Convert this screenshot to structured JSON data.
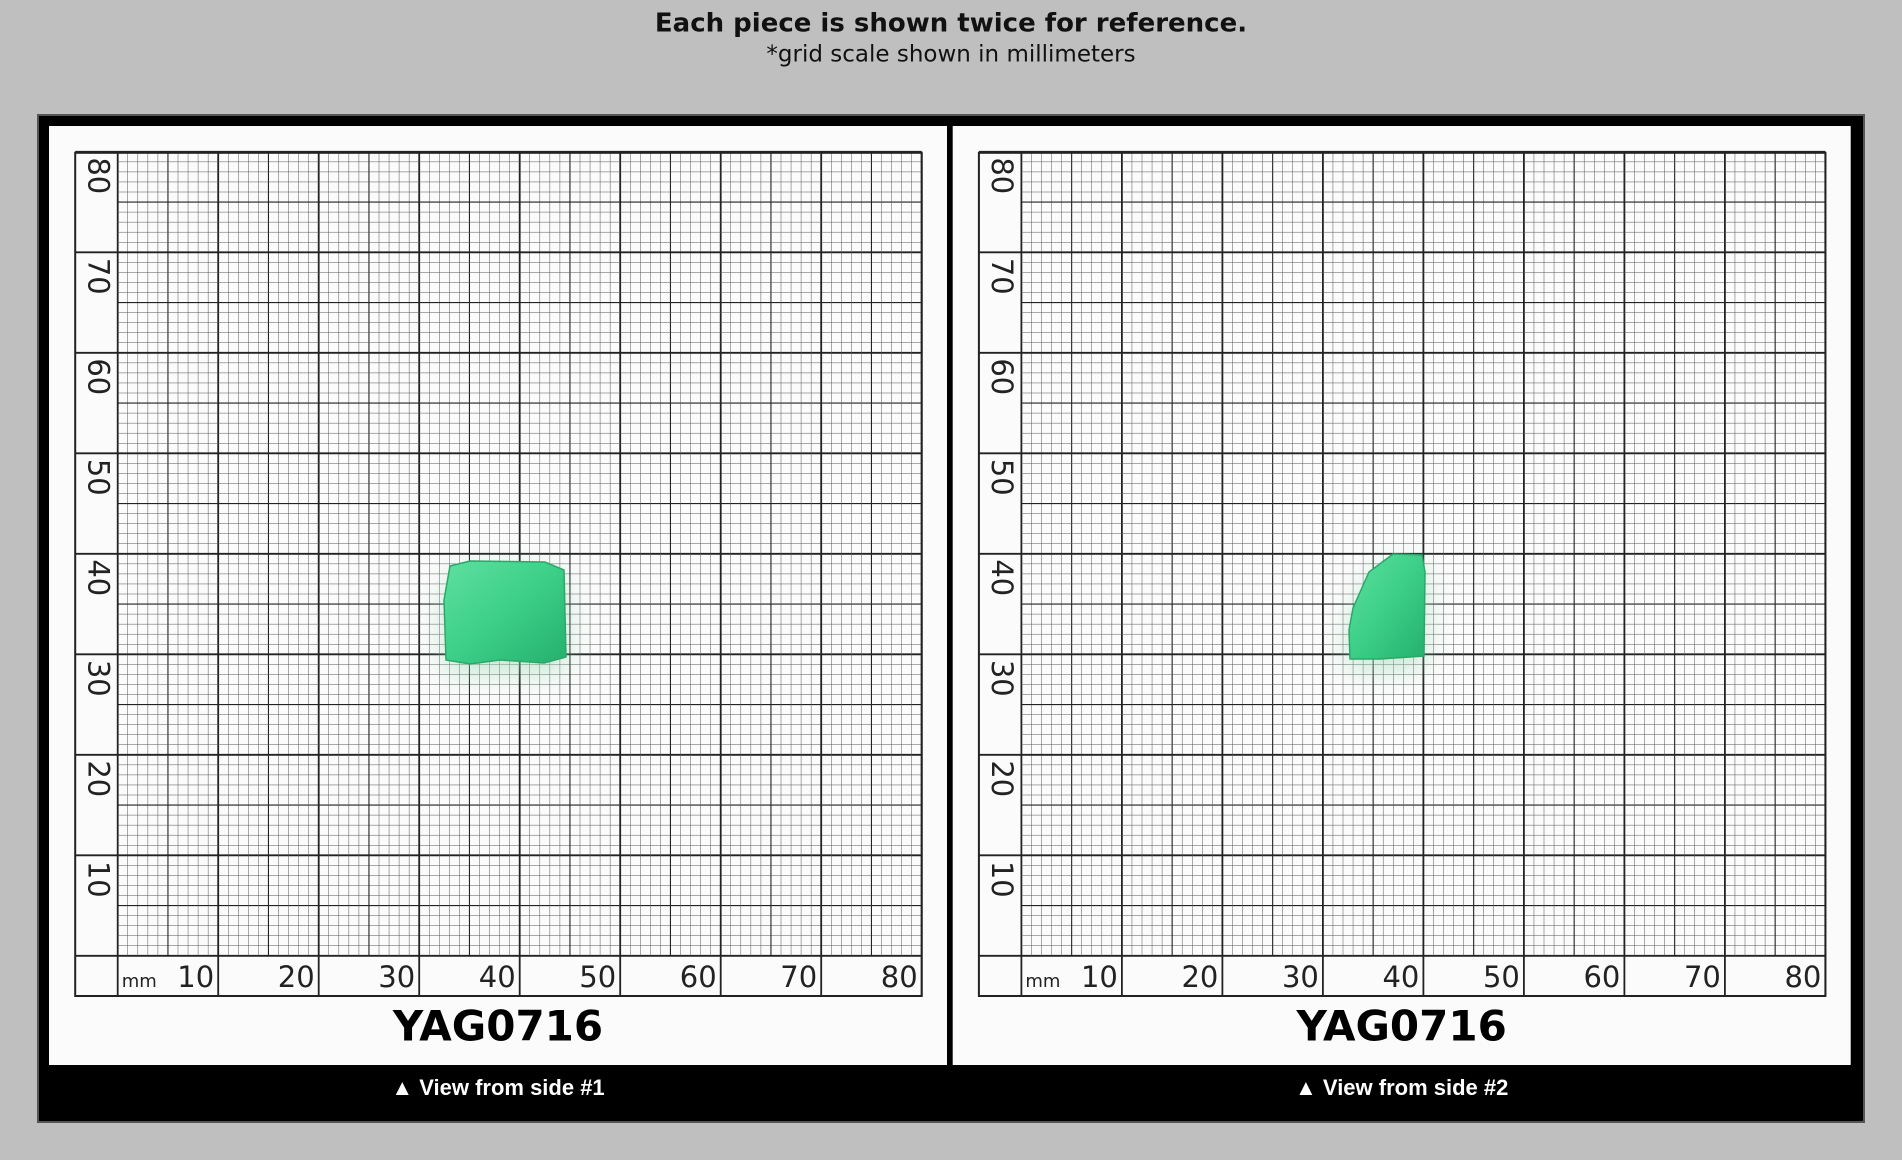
{
  "header": {
    "title": "Each piece is shown twice for reference.",
    "subtitle": "*grid scale shown in millimeters"
  },
  "panels": [
    {
      "unit": "mm",
      "x_labels": [
        10,
        20,
        30,
        40,
        50,
        60,
        70,
        80
      ],
      "y_labels": [
        10,
        20,
        30,
        40,
        50,
        60,
        70,
        80
      ],
      "code": "YAG0716",
      "caption": "▲ View from side #1"
    },
    {
      "unit": "mm",
      "x_labels": [
        10,
        20,
        30,
        40,
        50,
        60,
        70,
        80
      ],
      "y_labels": [
        10,
        20,
        30,
        40,
        50,
        60,
        70,
        80
      ],
      "code": "YAG0716",
      "caption": "▲ View from side #2"
    }
  ]
}
